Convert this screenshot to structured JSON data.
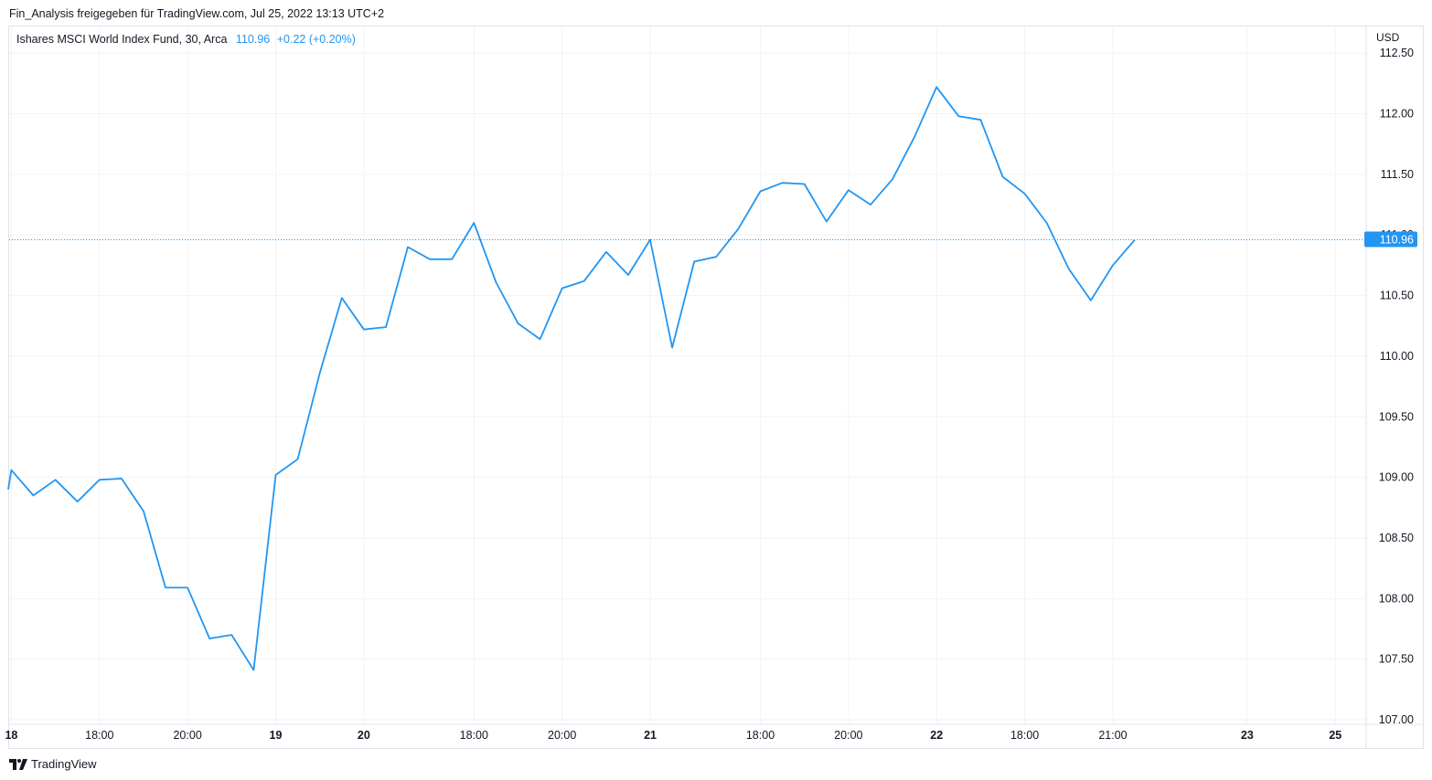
{
  "header": {
    "share_text": "Fin_Analysis freigegeben für TradingView.com, Jul 25, 2022 13:13 UTC+2"
  },
  "legend": {
    "symbol": "Ishares MSCI World Index Fund, 30, Arca",
    "last": "110.96",
    "change": "+0.22 (+0.20%)"
  },
  "footer": {
    "brand": "TradingView",
    "logo_icon": "tradingview-logo-icon"
  },
  "colors": {
    "line": "#2196f3",
    "grid": "#f0f3fa",
    "text": "#131722",
    "price_label_bg": "#2196f3"
  },
  "chart_data": {
    "type": "line",
    "title": "Ishares MSCI World Index Fund, 30, Arca",
    "currency": "USD",
    "ylim": [
      106.97,
      112.72
    ],
    "y_ticks": [
      "112.50",
      "112.00",
      "111.50",
      "111.00",
      "110.50",
      "110.00",
      "109.50",
      "109.00",
      "108.50",
      "108.00",
      "107.50",
      "107.00"
    ],
    "y_tick_values": [
      112.5,
      112.0,
      111.5,
      111.0,
      110.5,
      110.0,
      109.5,
      109.0,
      108.5,
      108.0,
      107.5,
      107.0
    ],
    "x_ticks": [
      {
        "label": "18",
        "i": 0,
        "bold": true
      },
      {
        "label": "18:00",
        "i": 4,
        "bold": false
      },
      {
        "label": "20:00",
        "i": 8,
        "bold": false
      },
      {
        "label": "19",
        "i": 12,
        "bold": true
      },
      {
        "label": "20",
        "i": 16,
        "bold": true
      },
      {
        "label": "18:00",
        "i": 21,
        "bold": false
      },
      {
        "label": "20:00",
        "i": 25,
        "bold": false
      },
      {
        "label": "21",
        "i": 29,
        "bold": true
      },
      {
        "label": "18:00",
        "i": 34,
        "bold": false
      },
      {
        "label": "20:00",
        "i": 38,
        "bold": false
      },
      {
        "label": "22",
        "i": 42,
        "bold": true
      },
      {
        "label": "18:00",
        "i": 46,
        "bold": false
      },
      {
        "label": "21:00",
        "i": 50,
        "bold": false
      },
      {
        "label": "23",
        "i": 56.1,
        "bold": true
      },
      {
        "label": "25",
        "i": 60.1,
        "bold": true
      }
    ],
    "x_index_range": [
      -0.1,
      61.5
    ],
    "series": [
      {
        "values": [
          109.06,
          108.85,
          108.98,
          108.8,
          108.98,
          108.99,
          108.72,
          108.09,
          108.09,
          107.67,
          107.7,
          107.41,
          109.02,
          109.15,
          109.86,
          110.48,
          110.22,
          110.24,
          110.9,
          110.8,
          110.8,
          111.1,
          110.61,
          110.27,
          110.14,
          110.56,
          110.62,
          110.86,
          110.67,
          110.96,
          110.07,
          110.78,
          110.82,
          111.05,
          111.36,
          111.43,
          111.42,
          111.11,
          111.37,
          111.25,
          111.46,
          111.81,
          112.22,
          111.98,
          111.95,
          111.48,
          111.34,
          111.1,
          110.72,
          110.46,
          110.75,
          110.96
        ],
        "start_value": 108.9
      }
    ],
    "last_price": 110.96,
    "last_price_label": "110.96",
    "partial_label": "111.00",
    "grid": true
  }
}
